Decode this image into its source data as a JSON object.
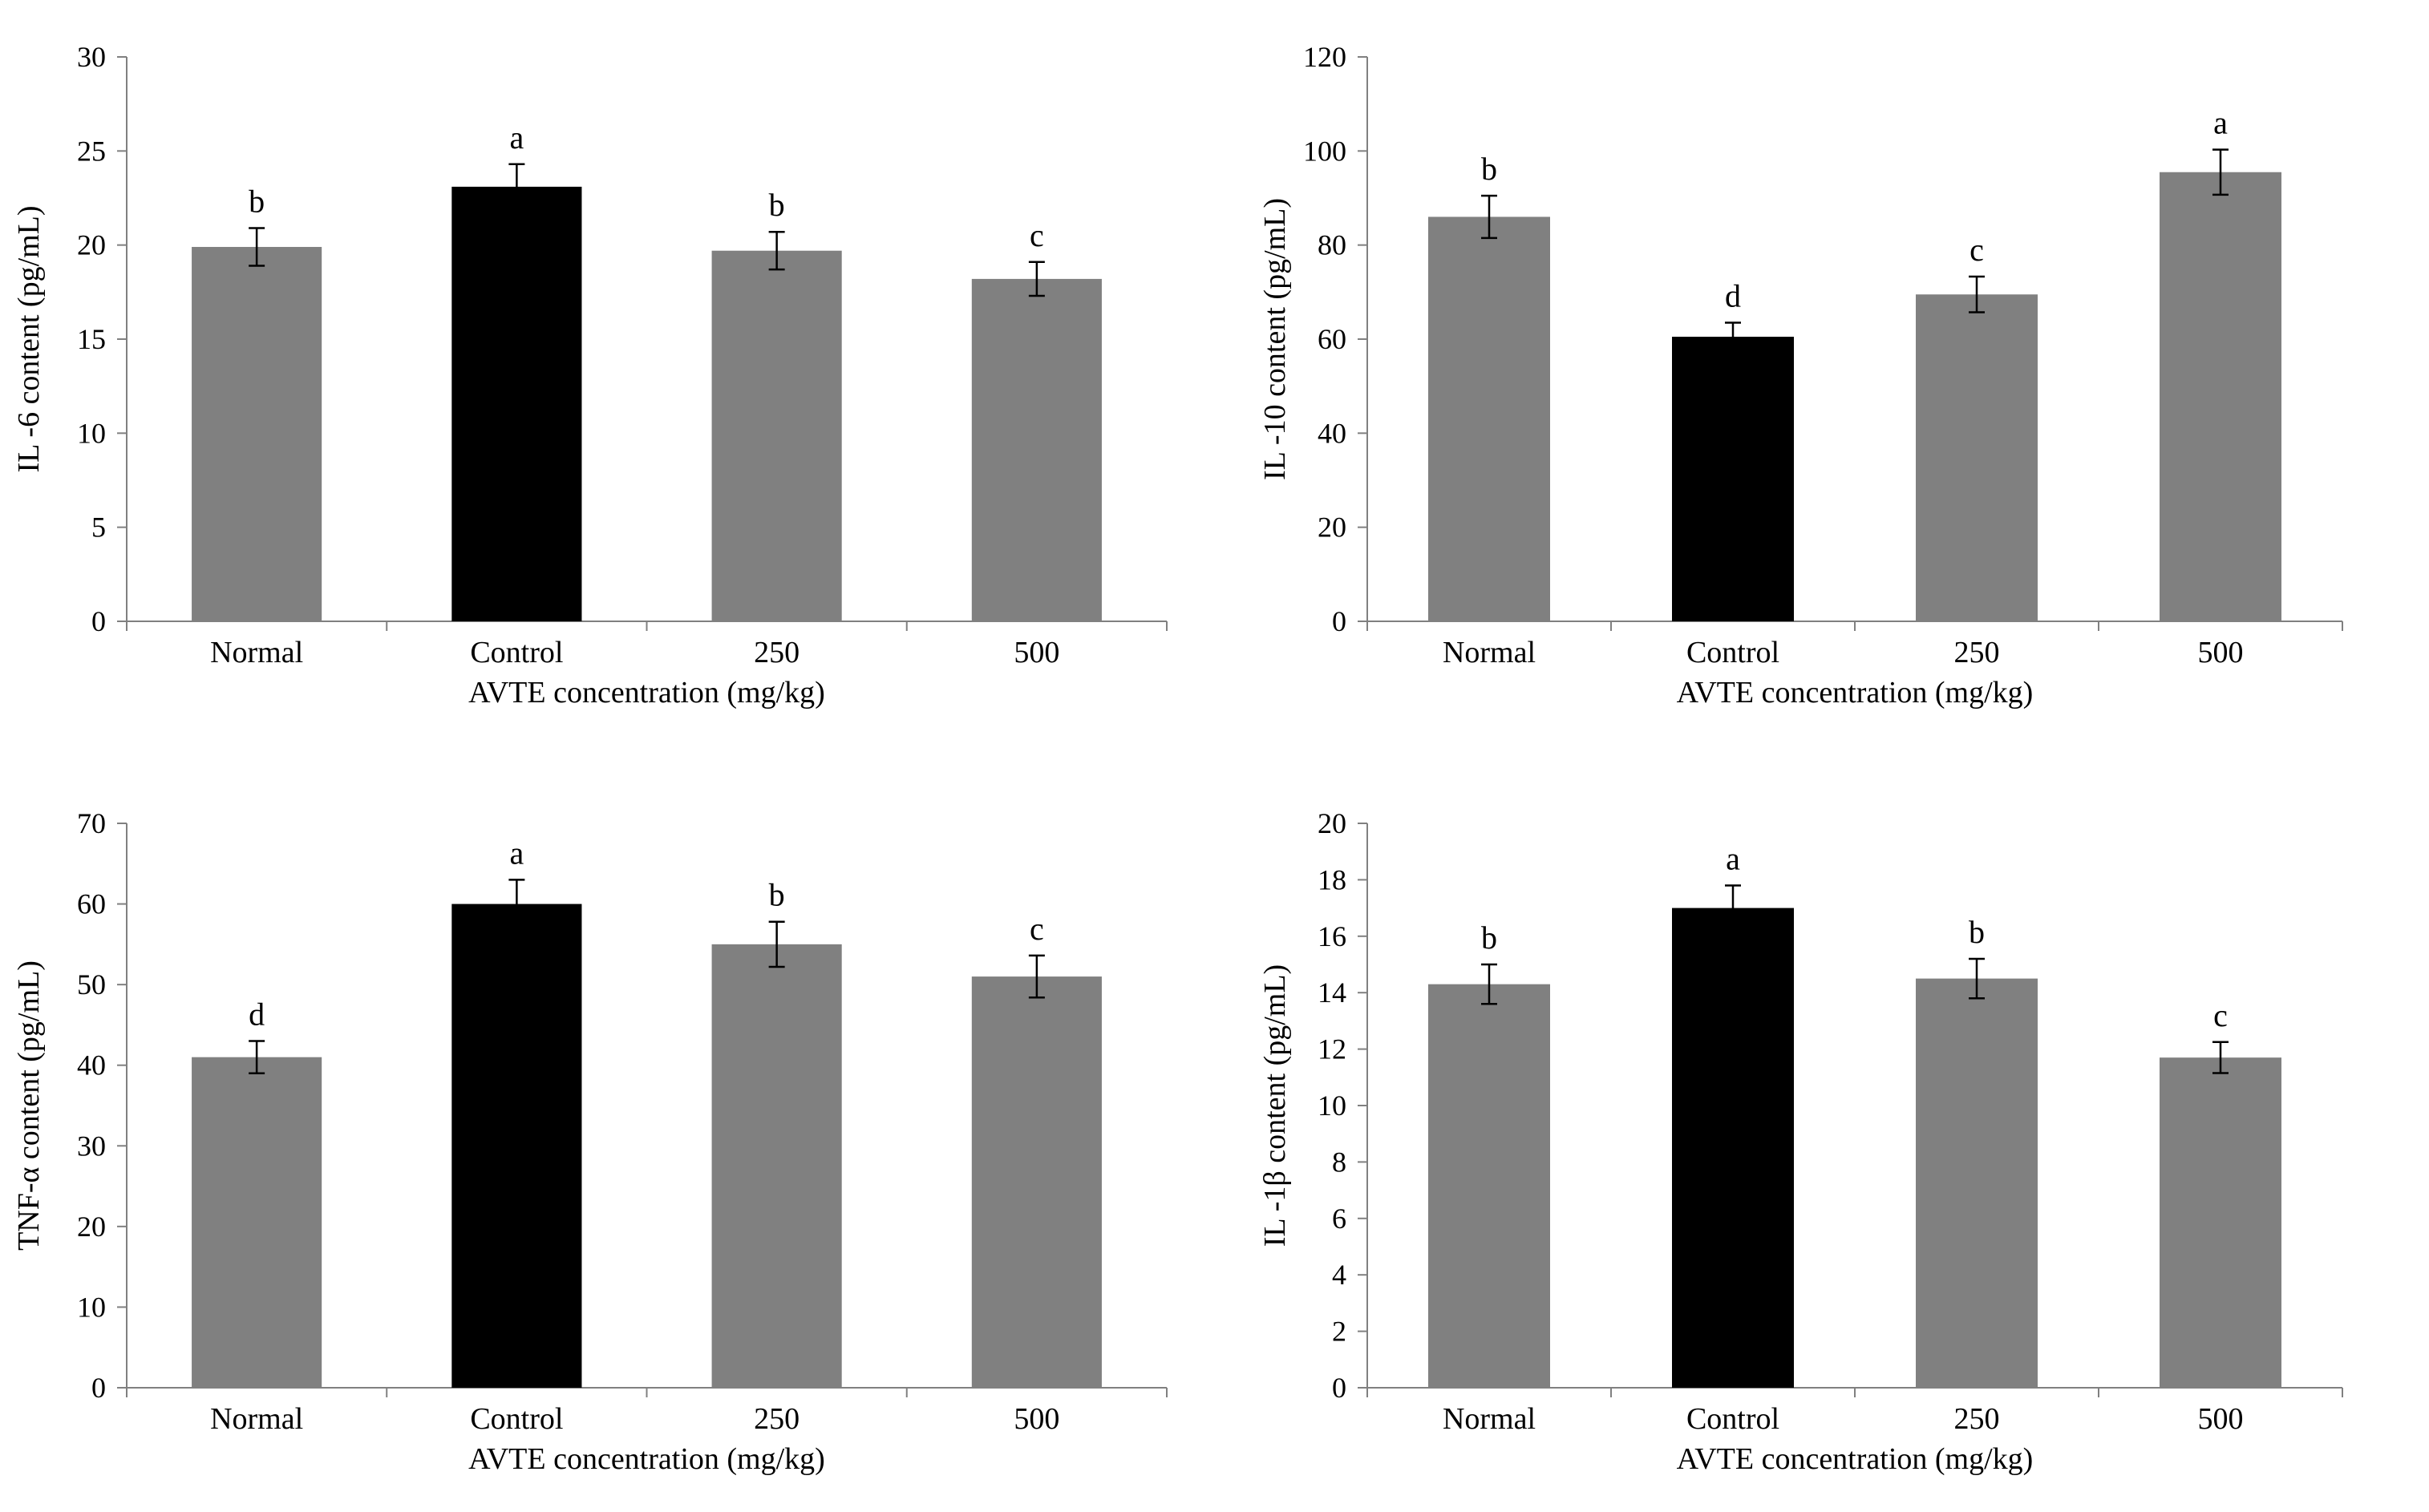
{
  "colors": {
    "bar_default": "#808080",
    "bar_control": "#000000",
    "axis": "#808080",
    "error_bar": "#000000"
  },
  "chart_data": [
    {
      "type": "bar",
      "title": "",
      "categories": [
        "Normal",
        "Control",
        "250",
        "500"
      ],
      "values": [
        19.9,
        23.1,
        19.7,
        18.2
      ],
      "errors": [
        1.0,
        1.2,
        1.0,
        0.9
      ],
      "letters": [
        "b",
        "a",
        "b",
        "c"
      ],
      "xlabel": "AVTE concentration (mg/kg)",
      "ylabel": "IL -6 content (pg/mL)",
      "ylim": [
        0,
        30
      ],
      "yticks": [
        0,
        5,
        10,
        15,
        20,
        25,
        30
      ],
      "highlight_index": 1
    },
    {
      "type": "bar",
      "title": "",
      "categories": [
        "Normal",
        "Control",
        "250",
        "500"
      ],
      "values": [
        86,
        60.5,
        69.5,
        95.5
      ],
      "errors": [
        4.5,
        3.0,
        3.8,
        4.8
      ],
      "letters": [
        "b",
        "d",
        "c",
        "a"
      ],
      "xlabel": "AVTE concentration (mg/kg)",
      "ylabel": "IL -10 content (pg/mL)",
      "ylim": [
        0,
        120
      ],
      "yticks": [
        0,
        20,
        40,
        60,
        80,
        100,
        120
      ],
      "highlight_index": 1
    },
    {
      "type": "bar",
      "title": "",
      "categories": [
        "Normal",
        "Control",
        "250",
        "500"
      ],
      "values": [
        41,
        60,
        55,
        51
      ],
      "errors": [
        2.0,
        3.0,
        2.8,
        2.6
      ],
      "letters": [
        "d",
        "a",
        "b",
        "c"
      ],
      "xlabel": "AVTE concentration (mg/kg)",
      "ylabel": "TNF-α content (pg/mL)",
      "ylim": [
        0,
        70
      ],
      "yticks": [
        0,
        10,
        20,
        30,
        40,
        50,
        60,
        70
      ],
      "highlight_index": 1
    },
    {
      "type": "bar",
      "title": "",
      "categories": [
        "Normal",
        "Control",
        "250",
        "500"
      ],
      "values": [
        14.3,
        17.0,
        14.5,
        11.7
      ],
      "errors": [
        0.7,
        0.8,
        0.7,
        0.55
      ],
      "letters": [
        "b",
        "a",
        "b",
        "c"
      ],
      "xlabel": "AVTE concentration (mg/kg)",
      "ylabel": "IL -1β content (pg/mL)",
      "ylim": [
        0,
        20
      ],
      "yticks": [
        0,
        2,
        4,
        6,
        8,
        10,
        12,
        14,
        16,
        18,
        20
      ],
      "highlight_index": 1
    }
  ]
}
